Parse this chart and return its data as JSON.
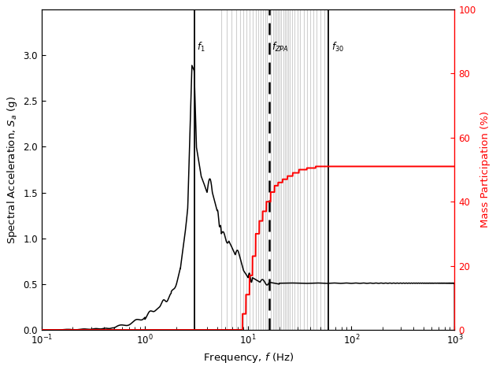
{
  "f1": 3.0,
  "fZPA": 16.0,
  "f30": 60.0,
  "xlabel": "Frequency, $f$ (Hz)",
  "ylabel_left": "Spectral Acceleration, $S_a$ (g)",
  "ylabel_right": "Mass Participation (%)",
  "ylim_left": [
    0,
    3.5
  ],
  "ylim_right": [
    0,
    100
  ],
  "background_color": "#ffffff",
  "line_color_spectrum": "#000000",
  "line_color_participation": "#ff0000",
  "vline_color": "#000000",
  "modal_band_freqs": [
    5.5,
    6.2,
    6.9,
    7.6,
    8.3,
    9.0,
    9.7,
    10.4,
    11.1,
    11.8,
    12.5,
    13.2,
    13.9,
    14.6,
    15.3,
    16.7,
    17.4,
    18.1,
    18.8,
    19.5,
    20.2,
    21.0,
    21.8,
    22.6,
    23.5,
    24.5,
    25.5,
    26.5,
    28.0,
    30.0,
    32.0,
    34.5,
    37.0,
    40.0,
    43.0,
    46.0,
    50.0,
    55.0
  ],
  "participation_steps_f": [
    8.0,
    8.8,
    9.5,
    10.3,
    11.0,
    11.8,
    12.8,
    13.8,
    15.0,
    16.5,
    18.0,
    19.5,
    21.5,
    24.0,
    27.0,
    31.0,
    37.0,
    45.0
  ],
  "participation_steps_p": [
    0,
    5,
    11,
    17,
    23,
    30,
    34,
    37,
    40,
    43,
    45,
    46,
    47,
    48,
    49,
    50,
    50.5,
    51
  ],
  "yticks_left": [
    0.0,
    0.5,
    1.0,
    1.5,
    2.0,
    2.5,
    3.0
  ],
  "yticks_right": [
    0,
    20,
    40,
    60,
    80,
    100
  ]
}
